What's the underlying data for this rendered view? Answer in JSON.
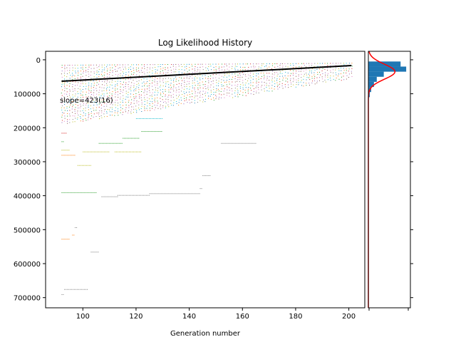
{
  "chart_data": [
    {
      "type": "scatter",
      "title": "Log Likelihood History",
      "xlabel": "Generation number",
      "ylabel": "",
      "xlim": [
        86,
        206
      ],
      "ylim": [
        -25000,
        730000
      ],
      "y_inverted": true,
      "xticks": [
        100,
        120,
        140,
        160,
        180,
        200
      ],
      "yticks": [
        0,
        100000,
        200000,
        300000,
        400000,
        500000,
        600000,
        700000
      ],
      "annotation": "slope=423(16)",
      "fit_line": {
        "x": [
          92,
          201
        ],
        "y": [
          63000,
          17000
        ],
        "color": "#000000"
      },
      "series_colors": [
        "#1f77b4",
        "#ff7f0e",
        "#2ca02c",
        "#d62728",
        "#9467bd",
        "#8c564b",
        "#e377c2",
        "#7f7f7f",
        "#bcbd22",
        "#17becf"
      ],
      "dense_band": {
        "x_start": 92,
        "x_end": 201,
        "y_top": [
          15000,
          9000
        ],
        "y_bottom": [
          190000,
          55000
        ]
      },
      "outlier_segments": [
        {
          "x": [
            92,
            94
          ],
          "y": 215000,
          "color": "#d62728"
        },
        {
          "x": [
            92,
            93
          ],
          "y": 240000,
          "color": "#2ca02c"
        },
        {
          "x": [
            106,
            115
          ],
          "y": 245000,
          "color": "#2ca02c"
        },
        {
          "x": [
            115,
            121
          ],
          "y": 230000,
          "color": "#2ca02c"
        },
        {
          "x": [
            122,
            130
          ],
          "y": 210000,
          "color": "#2ca02c"
        },
        {
          "x": [
            120,
            130
          ],
          "y": 172000,
          "color": "#17becf"
        },
        {
          "x": [
            92,
            95
          ],
          "y": 265000,
          "color": "#bcbd22"
        },
        {
          "x": [
            92,
            97
          ],
          "y": 280000,
          "color": "#ff7f0e"
        },
        {
          "x": [
            100,
            110
          ],
          "y": 270000,
          "color": "#bcbd22"
        },
        {
          "x": [
            112,
            122
          ],
          "y": 270000,
          "color": "#bcbd22"
        },
        {
          "x": [
            98,
            103
          ],
          "y": 310000,
          "color": "#bcbd22"
        },
        {
          "x": [
            152,
            165
          ],
          "y": 245000,
          "color": "#7f7f7f"
        },
        {
          "x": [
            145,
            148
          ],
          "y": 340000,
          "color": "#7f7f7f"
        },
        {
          "x": [
            144,
            145
          ],
          "y": 378000,
          "color": "#7f7f7f"
        },
        {
          "x": [
            92,
            105
          ],
          "y": 390000,
          "color": "#2ca02c"
        },
        {
          "x": [
            107,
            113
          ],
          "y": 402000,
          "color": "#7f7f7f"
        },
        {
          "x": [
            113,
            125
          ],
          "y": 398000,
          "color": "#7f7f7f"
        },
        {
          "x": [
            125,
            144
          ],
          "y": 393000,
          "color": "#7f7f7f"
        },
        {
          "x": [
            97,
            98
          ],
          "y": 493000,
          "color": "#7f7f7f"
        },
        {
          "x": [
            96,
            97
          ],
          "y": 515000,
          "color": "#ff7f0e"
        },
        {
          "x": [
            92,
            95
          ],
          "y": 527000,
          "color": "#ff7f0e"
        },
        {
          "x": [
            103,
            106
          ],
          "y": 565000,
          "color": "#7f7f7f"
        },
        {
          "x": [
            93,
            102
          ],
          "y": 675000,
          "color": "#7f7f7f"
        },
        {
          "x": [
            92,
            93
          ],
          "y": 690000,
          "color": "#7f7f7f"
        }
      ]
    },
    {
      "type": "histogram",
      "orientation": "horizontal",
      "bar_color": "#1f77b4",
      "curve_color": "#ff0000",
      "bins": [
        {
          "y0": 5000,
          "y1": 20000,
          "count": 23
        },
        {
          "y0": 20000,
          "y1": 35000,
          "count": 27
        },
        {
          "y0": 35000,
          "y1": 50000,
          "count": 11
        },
        {
          "y0": 50000,
          "y1": 65000,
          "count": 6
        },
        {
          "y0": 65000,
          "y1": 80000,
          "count": 4
        },
        {
          "y0": 80000,
          "y1": 95000,
          "count": 2
        },
        {
          "y0": 95000,
          "y1": 110000,
          "count": 1
        }
      ],
      "xlim": [
        0,
        30
      ],
      "fit": {
        "mean": 35000,
        "sd": 22000,
        "peak_count": 19
      }
    }
  ]
}
